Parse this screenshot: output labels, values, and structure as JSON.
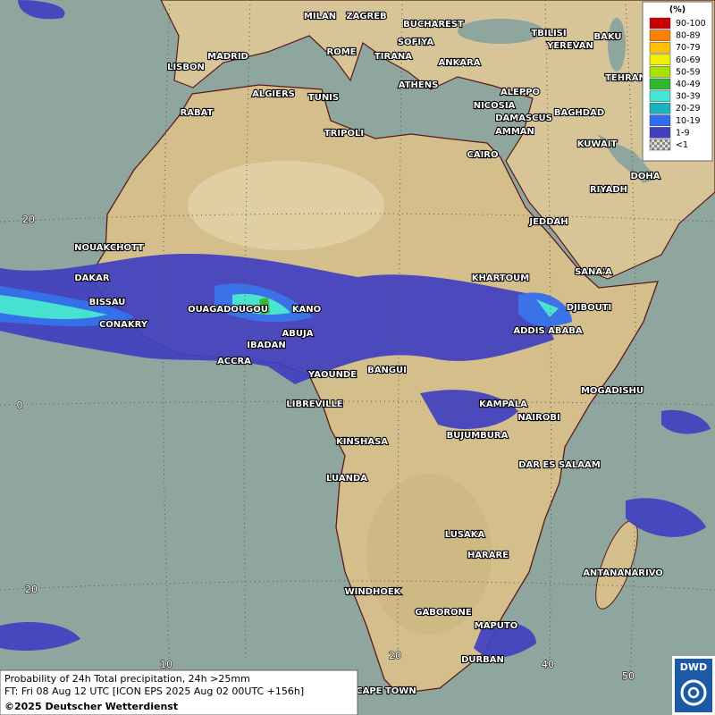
{
  "legend": {
    "title": "(%)",
    "items": [
      {
        "label": "90-100",
        "color": "#c80000"
      },
      {
        "label": "80-89",
        "color": "#ff7f00"
      },
      {
        "label": "70-79",
        "color": "#ffc000"
      },
      {
        "label": "60-69",
        "color": "#f0f000"
      },
      {
        "label": "50-59",
        "color": "#a8e000"
      },
      {
        "label": "40-49",
        "color": "#2eb82e"
      },
      {
        "label": "30-39",
        "color": "#40e6d6"
      },
      {
        "label": "20-29",
        "color": "#18b4c0"
      },
      {
        "label": "10-19",
        "color": "#2f6cf0"
      },
      {
        "label": "1-9",
        "color": "#4040c0"
      },
      {
        "label": "<1",
        "color": "#aaaaaa"
      }
    ]
  },
  "cities": [
    "MILAN",
    "ZAGREB",
    "BUCHAREST",
    "TBILISI",
    "BAKU",
    "MADRID",
    "ROME",
    "SOFIYA",
    "YEREVAN",
    "LISBON",
    "TIRANA",
    "ANKARA",
    "TEHRAN",
    "ALGIERS",
    "TUNIS",
    "ATHENS",
    "ALEPPO",
    "RABAT",
    "NICOSIA",
    "BAGHDAD",
    "DAMASCUS",
    "TRIPOLI",
    "AMMAN",
    "KUWAIT",
    "CAIRO",
    "DOHA",
    "RIYADH",
    "NOUAKCHOTT",
    "JEDDAH",
    "DAKAR",
    "SANA'A",
    "KHARTOUM",
    "BISSAU",
    "OUAGADOUGOU",
    "KANO",
    "DJIBOUTI",
    "CONAKRY",
    "ABUJA",
    "ADDIS ABABA",
    "IBADAN",
    "ACCRA",
    "BANGUI",
    "YAOUNDE",
    "MOGADISHU",
    "LIBREVILLE",
    "KAMPALA",
    "NAIROBI",
    "BUJUMBURA",
    "KINSHASA",
    "DAR ES SALAAM",
    "LUANDA",
    "LUSAKA",
    "HARARE",
    "ANTANANARIVO",
    "WINDHOEK",
    "GABORONE",
    "MAPUTO",
    "DURBAN",
    "CAPE TOWN"
  ],
  "grid_labels": [
    "20",
    "0",
    "20",
    "10",
    "20",
    "40",
    "50"
  ],
  "footer": {
    "line1": "Probability of 24h Total precipitation, 24h >25mm",
    "line2": "FT: Fri 08 Aug 12 UTC [ICON EPS 2025 Aug 02 00UTC +156h]",
    "copyright": "©2025 Deutscher Wetterdienst"
  },
  "logo": "DWD"
}
